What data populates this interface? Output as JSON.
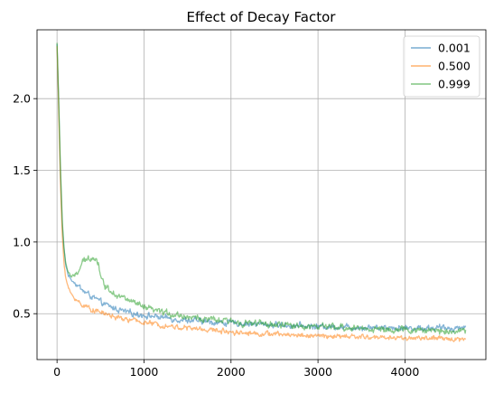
{
  "chart_data": {
    "type": "line",
    "title": "Effect of Decay Factor",
    "xlabel": "",
    "ylabel": "",
    "xlim": [
      -230,
      4930
    ],
    "ylim": [
      0.18,
      2.48
    ],
    "xticks": [
      0,
      1000,
      2000,
      3000,
      4000
    ],
    "xtick_labels": [
      "0",
      "1000",
      "2000",
      "3000",
      "4000"
    ],
    "yticks": [
      0.5,
      1.0,
      1.5,
      2.0
    ],
    "ytick_labels": [
      "0.5",
      "1.0",
      "1.5",
      "2.0"
    ],
    "grid": true,
    "legend_position": "top-right",
    "series": [
      {
        "name": "0.001",
        "color": "#1f77b4",
        "noise": 0.018,
        "x": [
          0,
          20,
          40,
          60,
          80,
          100,
          130,
          160,
          200,
          250,
          300,
          400,
          500,
          600,
          700,
          800,
          900,
          1000,
          1200,
          1400,
          1600,
          1800,
          2000,
          2200,
          2400,
          2600,
          2800,
          3000,
          3200,
          3400,
          3600,
          3800,
          4000,
          4200,
          4400,
          4600,
          4700
        ],
        "y": [
          2.38,
          1.95,
          1.45,
          1.12,
          0.95,
          0.84,
          0.77,
          0.74,
          0.72,
          0.69,
          0.66,
          0.62,
          0.58,
          0.55,
          0.53,
          0.51,
          0.5,
          0.49,
          0.475,
          0.46,
          0.45,
          0.44,
          0.435,
          0.43,
          0.425,
          0.42,
          0.415,
          0.41,
          0.41,
          0.405,
          0.405,
          0.405,
          0.4,
          0.4,
          0.4,
          0.4,
          0.41
        ]
      },
      {
        "name": "0.500",
        "color": "#ff7f0e",
        "noise": 0.015,
        "x": [
          0,
          20,
          40,
          60,
          80,
          100,
          130,
          160,
          200,
          250,
          300,
          400,
          500,
          600,
          700,
          800,
          900,
          1000,
          1200,
          1400,
          1600,
          1800,
          2000,
          2200,
          2400,
          2600,
          2800,
          3000,
          3200,
          3400,
          3600,
          3800,
          4000,
          4200,
          4400,
          4600,
          4700
        ],
        "y": [
          2.37,
          1.9,
          1.4,
          1.05,
          0.86,
          0.75,
          0.68,
          0.64,
          0.61,
          0.58,
          0.56,
          0.53,
          0.51,
          0.49,
          0.47,
          0.46,
          0.45,
          0.44,
          0.42,
          0.405,
          0.395,
          0.385,
          0.375,
          0.365,
          0.36,
          0.355,
          0.35,
          0.345,
          0.34,
          0.34,
          0.335,
          0.335,
          0.33,
          0.33,
          0.325,
          0.325,
          0.32
        ]
      },
      {
        "name": "0.999",
        "color": "#2ca02c",
        "noise": 0.02,
        "x": [
          0,
          20,
          40,
          60,
          80,
          100,
          130,
          160,
          200,
          250,
          300,
          350,
          400,
          450,
          480,
          520,
          600,
          700,
          800,
          900,
          1000,
          1200,
          1400,
          1600,
          1800,
          2000,
          2200,
          2400,
          2600,
          2800,
          3000,
          3200,
          3400,
          3600,
          3800,
          4000,
          4200,
          4400,
          4600,
          4700
        ],
        "y": [
          2.39,
          1.98,
          1.5,
          1.15,
          0.96,
          0.85,
          0.79,
          0.76,
          0.76,
          0.8,
          0.86,
          0.88,
          0.9,
          0.88,
          0.84,
          0.72,
          0.67,
          0.63,
          0.6,
          0.57,
          0.54,
          0.51,
          0.49,
          0.47,
          0.455,
          0.445,
          0.435,
          0.425,
          0.42,
          0.415,
          0.41,
          0.405,
          0.4,
          0.395,
          0.39,
          0.385,
          0.385,
          0.38,
          0.38,
          0.38
        ]
      }
    ]
  }
}
